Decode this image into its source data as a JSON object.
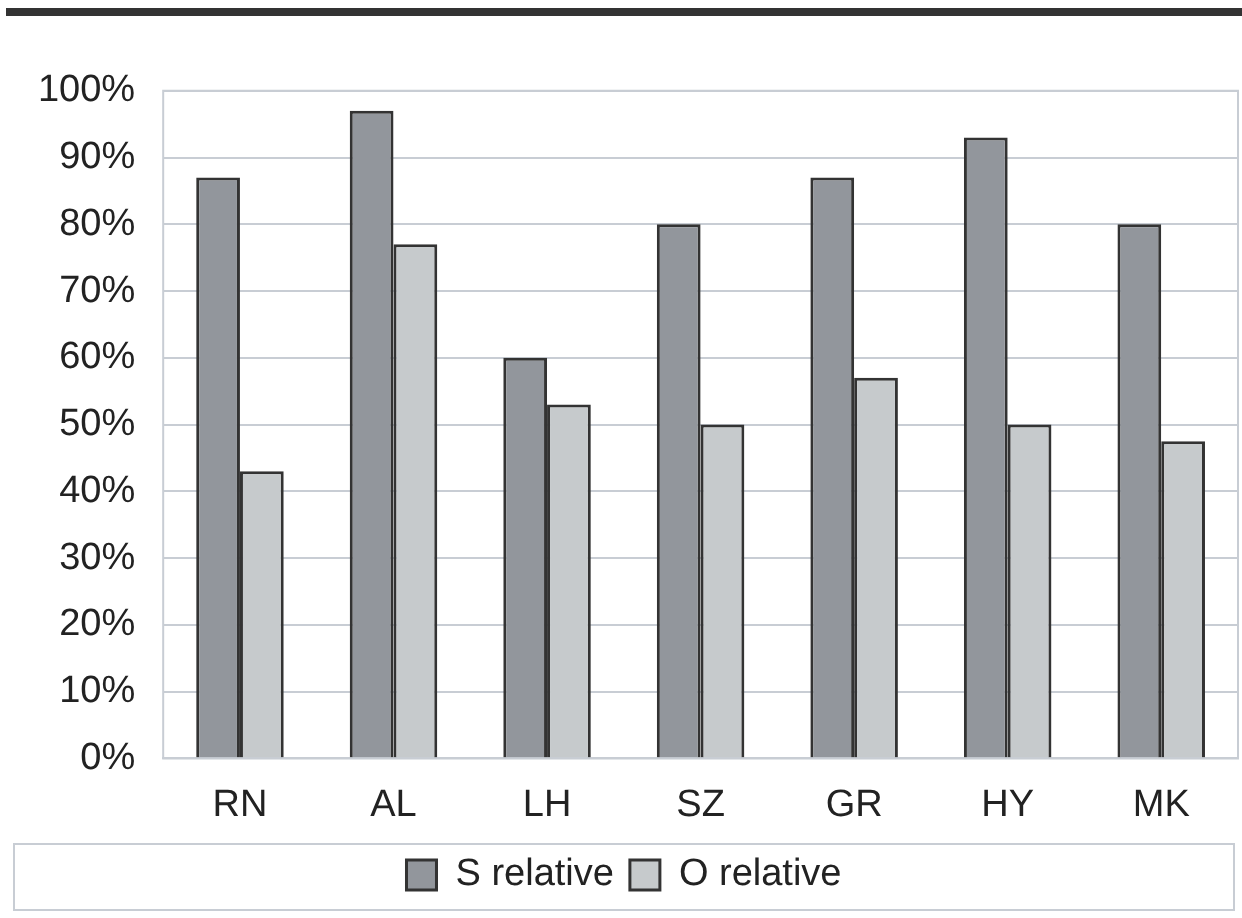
{
  "chart_data": {
    "type": "bar",
    "categories": [
      "RN",
      "AL",
      "LH",
      "SZ",
      "GR",
      "HY",
      "MK"
    ],
    "series": [
      {
        "name": "S relative",
        "color": "#92969c",
        "values": [
          87,
          97,
          60,
          80,
          87,
          93,
          80
        ]
      },
      {
        "name": "O relative",
        "color": "#c6cacc",
        "values": [
          43,
          77,
          53,
          50,
          57,
          50,
          47.5
        ]
      }
    ],
    "ylim": [
      0,
      100
    ],
    "yticks": [
      {
        "value": 0,
        "label": "0%"
      },
      {
        "value": 10,
        "label": "10%"
      },
      {
        "value": 20,
        "label": "20%"
      },
      {
        "value": 30,
        "label": "30%"
      },
      {
        "value": 40,
        "label": "40%"
      },
      {
        "value": 50,
        "label": "50%"
      },
      {
        "value": 60,
        "label": "60%"
      },
      {
        "value": 70,
        "label": "70%"
      },
      {
        "value": 80,
        "label": "80%"
      },
      {
        "value": 90,
        "label": "90%"
      },
      {
        "value": 100,
        "label": "100%"
      }
    ],
    "grid": "y",
    "legend": "bottom"
  }
}
